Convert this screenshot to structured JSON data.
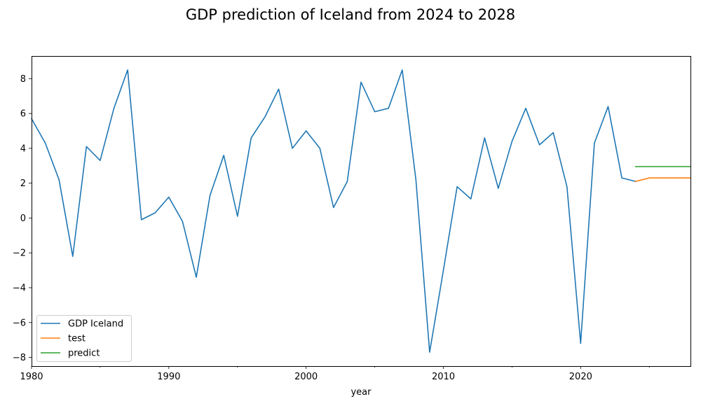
{
  "chart_data": {
    "type": "line",
    "title": "GDP prediction of Iceland from 2024 to 2028",
    "xlabel": "year",
    "ylabel": "",
    "xlim": [
      1980,
      2028
    ],
    "ylim": [
      -8.5,
      9.3
    ],
    "x_ticks": [
      1980,
      1990,
      2000,
      2010,
      2020
    ],
    "x_tick_labels": [
      "1980",
      "1990",
      "2000",
      "2010",
      "2020"
    ],
    "x_minor_ticks": [
      1985,
      1995,
      2005,
      2015,
      2025
    ],
    "y_ticks": [
      -8,
      -6,
      -4,
      -2,
      0,
      2,
      4,
      6,
      8
    ],
    "y_tick_labels": [
      "−8",
      "−6",
      "−4",
      "−2",
      "0",
      "2",
      "4",
      "6",
      "8"
    ],
    "grid": false,
    "legend_position": "lower-left",
    "series": [
      {
        "name": "GDP Iceland",
        "color": "#1f77b4",
        "x": [
          1980,
          1981,
          1982,
          1983,
          1984,
          1985,
          1986,
          1987,
          1988,
          1989,
          1990,
          1991,
          1992,
          1993,
          1994,
          1995,
          1996,
          1997,
          1998,
          1999,
          2000,
          2001,
          2002,
          2003,
          2004,
          2005,
          2006,
          2007,
          2008,
          2009,
          2010,
          2011,
          2012,
          2013,
          2014,
          2015,
          2016,
          2017,
          2018,
          2019,
          2020,
          2021,
          2022,
          2023,
          2024
        ],
        "y": [
          5.7,
          4.3,
          2.2,
          -2.2,
          4.1,
          3.3,
          6.3,
          8.5,
          -0.1,
          0.3,
          1.2,
          -0.2,
          -3.4,
          1.3,
          3.6,
          0.1,
          4.6,
          5.8,
          7.4,
          4.0,
          5.0,
          4.0,
          0.6,
          2.1,
          7.8,
          6.1,
          6.3,
          8.5,
          2.2,
          -7.7,
          -3.0,
          1.8,
          1.1,
          4.6,
          1.7,
          4.4,
          6.3,
          4.2,
          4.9,
          1.8,
          -7.2,
          4.3,
          6.4,
          2.3,
          2.1
        ]
      },
      {
        "name": "test",
        "color": "#ff7f0e",
        "x": [
          2024,
          2025,
          2026,
          2027,
          2028
        ],
        "y": [
          2.1,
          2.3,
          2.3,
          2.3,
          2.3
        ]
      },
      {
        "name": "predict",
        "color": "#2ca02c",
        "x": [
          2024,
          2025,
          2026,
          2027,
          2028
        ],
        "y": [
          2.95,
          2.95,
          2.95,
          2.95,
          2.95
        ]
      }
    ]
  }
}
